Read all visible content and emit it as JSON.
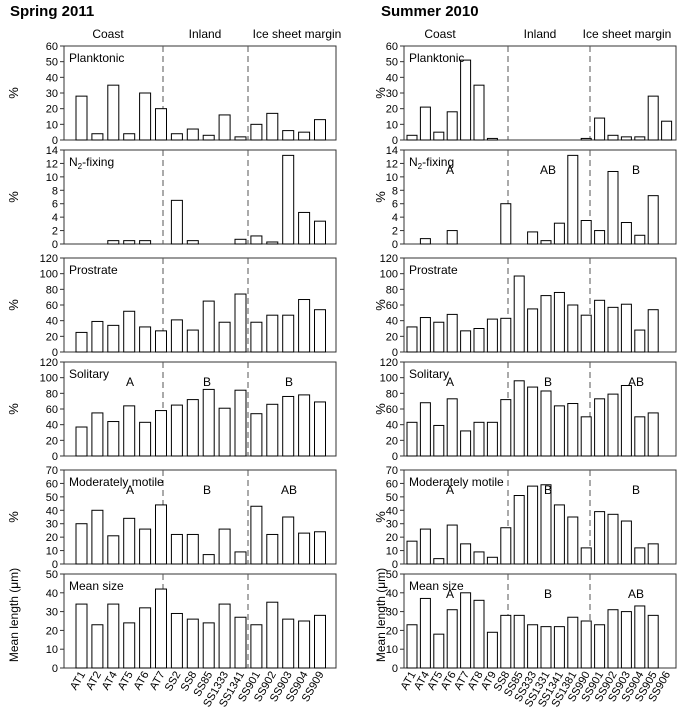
{
  "figure": {
    "left_title": "Spring 2011",
    "right_title": "Summer 2010",
    "left_regions": [
      "Coast",
      "Inland",
      "Ice sheet margin"
    ],
    "right_regions": [
      "Coast",
      "Inland",
      "Ice sheet margin"
    ]
  },
  "chart_data": [
    {
      "id": "spring",
      "type": "bar",
      "title": "Spring 2011",
      "regions": [
        "Coast",
        "Inland",
        "Ice sheet margin"
      ],
      "categories": [
        "AT1",
        "AT2",
        "AT4",
        "AT5",
        "AT6",
        "AT7",
        "SS2",
        "SS8",
        "SS85",
        "SS1333",
        "SS1341",
        "SS901",
        "SS902",
        "SS903",
        "SS904",
        "SS909"
      ],
      "dividers_after": [
        5,
        10
      ],
      "panels": [
        {
          "label": "Planktonic",
          "ylabel": "%",
          "ylim": [
            0,
            60
          ],
          "yticks": [
            0,
            10,
            20,
            30,
            40,
            50,
            60
          ],
          "values": [
            28,
            4,
            35,
            4,
            30,
            20,
            4,
            7,
            3,
            16,
            2,
            10,
            17,
            6,
            5,
            13
          ],
          "letters": []
        },
        {
          "label": "N2-fixing",
          "label_main": "N",
          "label_sub": "2",
          "label_rest": "-fixing",
          "ylabel": "%",
          "ylim": [
            0,
            14
          ],
          "yticks": [
            0,
            2,
            4,
            6,
            8,
            10,
            12,
            14
          ],
          "values": [
            0,
            0,
            0.5,
            0.5,
            0.5,
            0,
            6.5,
            0.5,
            0,
            0,
            0.7,
            1.2,
            0.3,
            13.2,
            4.7,
            3.4
          ],
          "letters": []
        },
        {
          "label": "Prostrate",
          "ylabel": "%",
          "ylim": [
            0,
            120
          ],
          "yticks": [
            0,
            20,
            40,
            60,
            80,
            100,
            120
          ],
          "values": [
            25,
            39,
            34,
            52,
            32,
            27,
            41,
            28,
            65,
            38,
            74,
            38,
            47,
            47,
            67,
            54
          ],
          "letters": []
        },
        {
          "label": "Solitary",
          "ylabel": "%",
          "ylim": [
            0,
            120
          ],
          "yticks": [
            0,
            20,
            40,
            60,
            80,
            100,
            120
          ],
          "values": [
            37,
            55,
            44,
            64,
            43,
            58,
            65,
            72,
            85,
            61,
            84,
            54,
            66,
            76,
            78,
            69
          ],
          "letters": [
            {
              "text": "A",
              "region": 0
            },
            {
              "text": "B",
              "region": 1
            },
            {
              "text": "B",
              "region": 2
            }
          ]
        },
        {
          "label": "Moderately motile",
          "ylabel": "%",
          "ylim": [
            0,
            70
          ],
          "yticks": [
            0,
            10,
            20,
            30,
            40,
            50,
            60,
            70
          ],
          "values": [
            30,
            40,
            21,
            34,
            26,
            44,
            22,
            22,
            7,
            26,
            9,
            43,
            22,
            35,
            23,
            24
          ],
          "letters": [
            {
              "text": "A",
              "region": 0
            },
            {
              "text": "B",
              "region": 1
            },
            {
              "text": "AB",
              "region": 2
            }
          ]
        },
        {
          "label": "Mean size",
          "ylabel": "Mean length (μm)",
          "ylim": [
            0,
            50
          ],
          "yticks": [
            0,
            10,
            20,
            30,
            40,
            50
          ],
          "values": [
            34,
            23,
            34,
            24,
            32,
            42,
            29,
            26,
            24,
            34,
            27,
            23,
            35,
            26,
            25,
            28
          ],
          "letters": []
        }
      ]
    },
    {
      "id": "summer",
      "type": "bar",
      "title": "Summer 2010",
      "regions": [
        "Coast",
        "Inland",
        "Ice sheet margin"
      ],
      "categories": [
        "AT1",
        "AT4",
        "AT5",
        "AT6",
        "AT7",
        "AT8",
        "AT9",
        "SS8",
        "SS85",
        "SS333",
        "SS1331",
        "SS1341",
        "SS1381",
        "SS990",
        "SS901",
        "SS902",
        "SS903",
        "SS904",
        "SS905",
        "SS906"
      ],
      "dividers_after": [
        6,
        13
      ],
      "panels": [
        {
          "label": "Planktonic",
          "ylabel": "%",
          "ylim": [
            0,
            60
          ],
          "yticks": [
            0,
            10,
            20,
            30,
            40,
            50,
            60
          ],
          "values": [
            3,
            21,
            5,
            18,
            51,
            35,
            1,
            0,
            0,
            0,
            0,
            0,
            0,
            1,
            14,
            3,
            2,
            2,
            28,
            12
          ],
          "letters": []
        },
        {
          "label": "N2-fixing",
          "label_main": "N",
          "label_sub": "2",
          "label_rest": "-fixing",
          "ylabel": "%",
          "ylim": [
            0,
            14
          ],
          "yticks": [
            0,
            2,
            4,
            6,
            8,
            10,
            12,
            14
          ],
          "values": [
            0,
            0.8,
            0,
            2,
            0,
            0,
            0,
            6,
            0,
            1.8,
            0.5,
            3.1,
            13.2,
            3.5,
            2,
            10.8,
            3.2,
            1.3,
            7.2,
            0
          ],
          "letters": [
            {
              "text": "A",
              "region": 0
            },
            {
              "text": "AB",
              "region": 1
            },
            {
              "text": "B",
              "region": 2
            }
          ]
        },
        {
          "label": "Prostrate",
          "ylabel": "%",
          "ylim": [
            0,
            120
          ],
          "yticks": [
            0,
            20,
            40,
            60,
            80,
            100,
            120
          ],
          "values": [
            32,
            44,
            38,
            48,
            27,
            30,
            42,
            43,
            97,
            55,
            72,
            76,
            60,
            47,
            66,
            57,
            61,
            28,
            54,
            0
          ],
          "letters": []
        },
        {
          "label": "Solitary",
          "ylabel": "%",
          "ylim": [
            0,
            120
          ],
          "yticks": [
            0,
            20,
            40,
            60,
            80,
            100,
            120
          ],
          "values": [
            43,
            68,
            39,
            73,
            32,
            43,
            43,
            72,
            96,
            88,
            83,
            64,
            67,
            50,
            73,
            79,
            90,
            50,
            55,
            0
          ],
          "letters": [
            {
              "text": "A",
              "region": 0
            },
            {
              "text": "B",
              "region": 1
            },
            {
              "text": "AB",
              "region": 2
            }
          ]
        },
        {
          "label": "Moderately motile",
          "ylabel": "%",
          "ylim": [
            0,
            70
          ],
          "yticks": [
            0,
            10,
            20,
            30,
            40,
            50,
            60,
            70
          ],
          "values": [
            17,
            26,
            4,
            29,
            15,
            9,
            5,
            27,
            51,
            58,
            59,
            44,
            35,
            12,
            39,
            37,
            32,
            12,
            15,
            0
          ],
          "letters": [
            {
              "text": "A",
              "region": 0
            },
            {
              "text": "B",
              "region": 1
            },
            {
              "text": "B",
              "region": 2
            }
          ]
        },
        {
          "label": "Mean size",
          "ylabel": "Mean length (μm)",
          "ylim": [
            0,
            50
          ],
          "yticks": [
            0,
            10,
            20,
            30,
            40,
            50
          ],
          "values": [
            23,
            37,
            18,
            31,
            40,
            36,
            19,
            28,
            28,
            23,
            22,
            22,
            27,
            25,
            23,
            31,
            30,
            33,
            28,
            0
          ],
          "letters": [
            {
              "text": "A",
              "region": 0
            },
            {
              "text": "B",
              "region": 1
            },
            {
              "text": "AB",
              "region": 2
            }
          ]
        }
      ]
    }
  ]
}
